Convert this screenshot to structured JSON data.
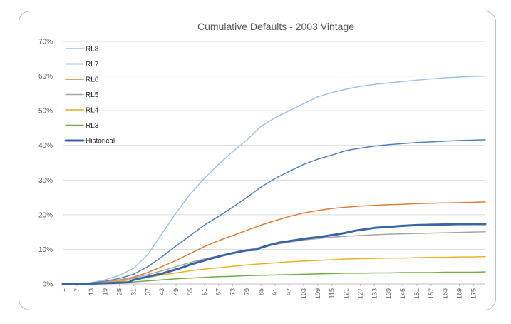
{
  "chart_data": {
    "type": "line",
    "title": "Cumulative Defaults - 2003 Vintage",
    "xlabel": "",
    "ylabel": "",
    "xlim": [
      1,
      180
    ],
    "ylim": [
      0,
      0.7
    ],
    "yticks": [
      0,
      0.1,
      0.2,
      0.3,
      0.4,
      0.5,
      0.6,
      0.7
    ],
    "ytick_labels": [
      "0%",
      "10%",
      "20%",
      "30%",
      "40%",
      "50%",
      "60%",
      "70%"
    ],
    "xticks": [
      1,
      7,
      13,
      19,
      25,
      31,
      37,
      43,
      49,
      55,
      61,
      67,
      73,
      79,
      85,
      91,
      97,
      103,
      109,
      115,
      121,
      127,
      133,
      139,
      145,
      151,
      157,
      163,
      169,
      175
    ],
    "legend_position": "top-left",
    "grid": true,
    "series": [
      {
        "name": "RL8",
        "color": "#9dc3e6",
        "width": 1.5,
        "x": [
          1,
          10,
          13,
          19,
          25,
          31,
          37,
          43,
          49,
          55,
          61,
          67,
          73,
          79,
          85,
          91,
          97,
          103,
          109,
          115,
          121,
          127,
          133,
          139,
          145,
          151,
          157,
          163,
          169,
          175,
          180
        ],
        "y": [
          0,
          0,
          0.004,
          0.012,
          0.025,
          0.045,
          0.085,
          0.145,
          0.205,
          0.26,
          0.305,
          0.345,
          0.382,
          0.415,
          0.455,
          0.48,
          0.5,
          0.52,
          0.54,
          0.552,
          0.562,
          0.57,
          0.576,
          0.58,
          0.584,
          0.588,
          0.592,
          0.595,
          0.597,
          0.599,
          0.6
        ]
      },
      {
        "name": "RL7",
        "color": "#4f81bd",
        "width": 1.5,
        "x": [
          1,
          10,
          13,
          19,
          25,
          31,
          37,
          43,
          49,
          55,
          61,
          67,
          73,
          79,
          85,
          91,
          97,
          103,
          109,
          115,
          121,
          127,
          133,
          139,
          145,
          151,
          157,
          163,
          169,
          175,
          180
        ],
        "y": [
          0,
          0,
          0.003,
          0.008,
          0.016,
          0.028,
          0.05,
          0.078,
          0.11,
          0.14,
          0.17,
          0.195,
          0.222,
          0.25,
          0.28,
          0.305,
          0.325,
          0.345,
          0.36,
          0.372,
          0.385,
          0.392,
          0.398,
          0.402,
          0.405,
          0.408,
          0.41,
          0.412,
          0.414,
          0.415,
          0.416
        ]
      },
      {
        "name": "RL6",
        "color": "#e07b39",
        "width": 1.5,
        "x": [
          1,
          10,
          13,
          19,
          25,
          31,
          37,
          43,
          49,
          55,
          61,
          67,
          73,
          79,
          85,
          91,
          97,
          103,
          109,
          115,
          121,
          127,
          133,
          139,
          145,
          151,
          157,
          163,
          169,
          175,
          180
        ],
        "y": [
          0,
          0,
          0.002,
          0.006,
          0.012,
          0.02,
          0.033,
          0.05,
          0.068,
          0.088,
          0.108,
          0.125,
          0.14,
          0.155,
          0.17,
          0.183,
          0.195,
          0.205,
          0.212,
          0.218,
          0.222,
          0.225,
          0.227,
          0.229,
          0.23,
          0.232,
          0.233,
          0.234,
          0.235,
          0.236,
          0.237
        ]
      },
      {
        "name": "RL5",
        "color": "#a5a5a5",
        "width": 1.5,
        "x": [
          1,
          10,
          13,
          19,
          25,
          31,
          37,
          43,
          49,
          55,
          61,
          67,
          73,
          79,
          85,
          91,
          97,
          103,
          109,
          115,
          121,
          127,
          133,
          139,
          145,
          151,
          157,
          163,
          169,
          175,
          180
        ],
        "y": [
          0,
          0,
          0.002,
          0.005,
          0.01,
          0.017,
          0.027,
          0.038,
          0.05,
          0.062,
          0.072,
          0.081,
          0.09,
          0.098,
          0.106,
          0.114,
          0.121,
          0.127,
          0.131,
          0.135,
          0.138,
          0.14,
          0.142,
          0.144,
          0.145,
          0.146,
          0.147,
          0.148,
          0.149,
          0.15,
          0.151
        ]
      },
      {
        "name": "RL4",
        "color": "#e6b422",
        "width": 1.5,
        "x": [
          1,
          10,
          13,
          19,
          25,
          31,
          37,
          43,
          49,
          55,
          61,
          67,
          73,
          79,
          85,
          91,
          97,
          103,
          109,
          115,
          121,
          127,
          133,
          139,
          145,
          151,
          157,
          163,
          169,
          175,
          180
        ],
        "y": [
          0,
          0,
          0.001,
          0.004,
          0.008,
          0.013,
          0.019,
          0.026,
          0.032,
          0.038,
          0.043,
          0.047,
          0.051,
          0.055,
          0.058,
          0.061,
          0.064,
          0.066,
          0.068,
          0.07,
          0.072,
          0.073,
          0.074,
          0.075,
          0.075,
          0.076,
          0.077,
          0.077,
          0.078,
          0.078,
          0.079
        ]
      },
      {
        "name": "RL3",
        "color": "#70ad47",
        "width": 1.5,
        "x": [
          1,
          10,
          13,
          19,
          25,
          31,
          37,
          43,
          49,
          55,
          61,
          67,
          73,
          79,
          85,
          91,
          97,
          103,
          109,
          115,
          121,
          127,
          133,
          139,
          145,
          151,
          157,
          163,
          169,
          175,
          180
        ],
        "y": [
          0,
          0,
          0,
          0.002,
          0.004,
          0.006,
          0.009,
          0.012,
          0.015,
          0.017,
          0.019,
          0.021,
          0.022,
          0.024,
          0.025,
          0.026,
          0.027,
          0.028,
          0.029,
          0.03,
          0.031,
          0.031,
          0.032,
          0.032,
          0.033,
          0.033,
          0.033,
          0.034,
          0.034,
          0.034,
          0.035
        ]
      },
      {
        "name": "Historical",
        "color": "#3a64a8",
        "width": 3,
        "x": [
          1,
          10,
          13,
          19,
          25,
          29,
          31,
          35,
          39,
          43,
          47,
          51,
          55,
          59,
          63,
          67,
          71,
          75,
          79,
          83,
          85,
          89,
          93,
          97,
          101,
          105,
          109,
          113,
          117,
          121,
          125,
          129,
          133,
          139,
          145,
          151,
          157,
          163,
          169,
          175,
          180
        ],
        "y": [
          0,
          0,
          0.001,
          0.002,
          0.004,
          0.005,
          0.012,
          0.018,
          0.024,
          0.03,
          0.038,
          0.046,
          0.056,
          0.064,
          0.072,
          0.079,
          0.086,
          0.092,
          0.097,
          0.099,
          0.105,
          0.113,
          0.12,
          0.124,
          0.128,
          0.132,
          0.135,
          0.139,
          0.143,
          0.148,
          0.154,
          0.158,
          0.162,
          0.165,
          0.168,
          0.17,
          0.171,
          0.172,
          0.173,
          0.173,
          0.173
        ]
      }
    ]
  }
}
